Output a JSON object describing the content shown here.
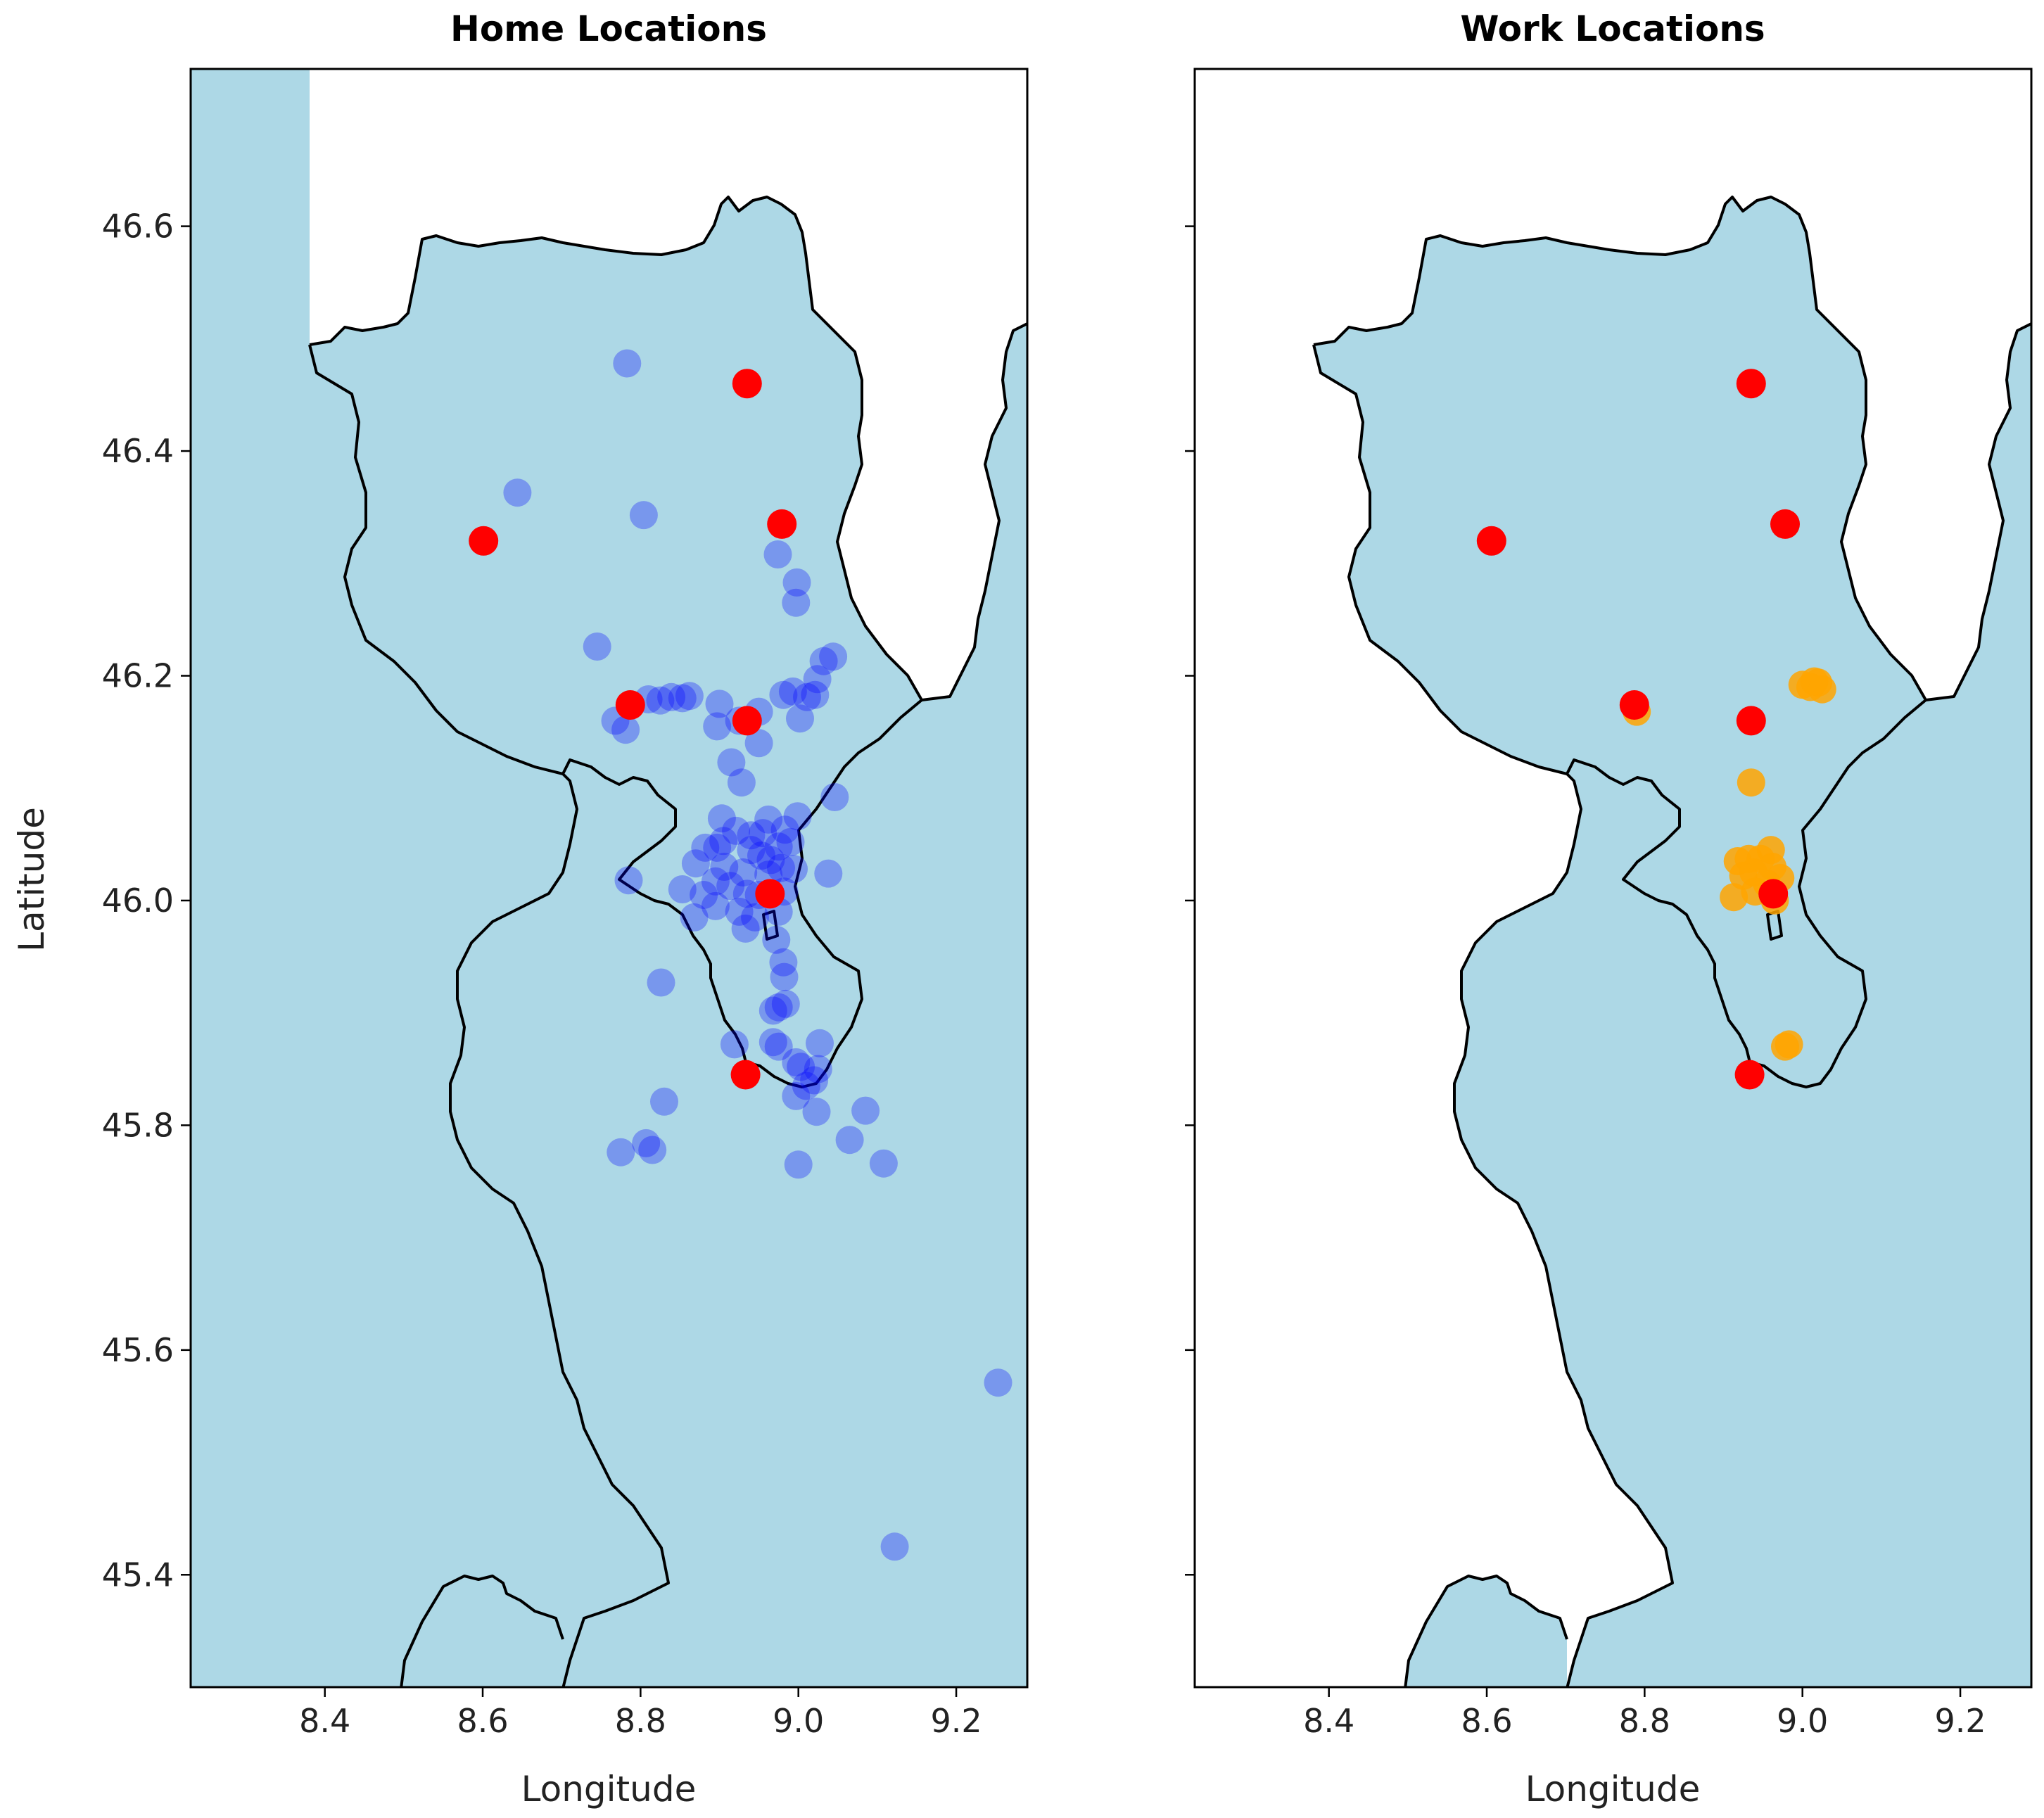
{
  "chart_data": [
    {
      "type": "scatter",
      "title": "Home Locations",
      "xlabel": "Longitude",
      "ylabel": "Latitude",
      "xlim": [
        8.23,
        9.29
      ],
      "ylim": [
        45.3,
        46.74
      ],
      "xticks": [
        "8.4",
        "8.6",
        "8.8",
        "9.0",
        "9.2"
      ],
      "xtick_values": [
        8.4,
        8.6,
        8.8,
        9.0,
        9.2
      ],
      "yticks": [
        "45.4",
        "45.6",
        "45.8",
        "46.0",
        "46.2",
        "46.4",
        "46.6"
      ],
      "ytick_values": [
        45.4,
        45.6,
        45.8,
        46.0,
        46.2,
        46.4,
        46.6
      ],
      "show_yticklabels": true,
      "map_fill_color": "#add8e6",
      "series": [
        {
          "color": "#0000ff",
          "alpha": 0.3,
          "points": [
            [
              8.783,
              46.478
            ],
            [
              8.644,
              46.363
            ],
            [
              8.804,
              46.343
            ],
            [
              8.974,
              46.308
            ],
            [
              8.998,
              46.283
            ],
            [
              8.997,
              46.265
            ],
            [
              8.745,
              46.226
            ],
            [
              9.032,
              46.213
            ],
            [
              9.044,
              46.217
            ],
            [
              9.024,
              46.197
            ],
            [
              8.981,
              46.183
            ],
            [
              8.993,
              46.186
            ],
            [
              9.011,
              46.181
            ],
            [
              9.021,
              46.183
            ],
            [
              9.002,
              46.162
            ],
            [
              8.825,
              46.178
            ],
            [
              8.839,
              46.181
            ],
            [
              8.853,
              46.18
            ],
            [
              8.862,
              46.182
            ],
            [
              8.81,
              46.179
            ],
            [
              8.768,
              46.16
            ],
            [
              8.781,
              46.152
            ],
            [
              8.9,
              46.175
            ],
            [
              8.897,
              46.155
            ],
            [
              8.925,
              46.16
            ],
            [
              8.95,
              46.168
            ],
            [
              8.95,
              46.14
            ],
            [
              8.915,
              46.123
            ],
            [
              8.928,
              46.105
            ],
            [
              9.046,
              46.092
            ],
            [
              8.903,
              46.073
            ],
            [
              8.962,
              46.072
            ],
            [
              8.999,
              46.075
            ],
            [
              8.983,
              46.063
            ],
            [
              8.955,
              46.06
            ],
            [
              8.94,
              46.058
            ],
            [
              8.921,
              46.062
            ],
            [
              8.905,
              46.053
            ],
            [
              8.882,
              46.047
            ],
            [
              8.897,
              46.047
            ],
            [
              8.94,
              46.045
            ],
            [
              8.953,
              46.04
            ],
            [
              8.965,
              46.036
            ],
            [
              8.975,
              46.048
            ],
            [
              8.99,
              46.052
            ],
            [
              8.87,
              46.033
            ],
            [
              8.906,
              46.03
            ],
            [
              8.93,
              46.025
            ],
            [
              8.962,
              46.023
            ],
            [
              8.978,
              46.029
            ],
            [
              8.994,
              46.028
            ],
            [
              9.038,
              46.024
            ],
            [
              8.785,
              46.018
            ],
            [
              8.895,
              46.017
            ],
            [
              8.914,
              46.013
            ],
            [
              8.935,
              46.006
            ],
            [
              8.95,
              46.005
            ],
            [
              8.982,
              46.008
            ],
            [
              8.853,
              46.01
            ],
            [
              8.88,
              46.005
            ],
            [
              8.895,
              45.995
            ],
            [
              8.925,
              45.99
            ],
            [
              8.945,
              45.985
            ],
            [
              8.975,
              45.99
            ],
            [
              8.868,
              45.985
            ],
            [
              8.933,
              45.975
            ],
            [
              8.972,
              45.965
            ],
            [
              8.981,
              45.945
            ],
            [
              8.982,
              45.932
            ],
            [
              8.826,
              45.927
            ],
            [
              8.984,
              45.908
            ],
            [
              8.975,
              45.905
            ],
            [
              8.968,
              45.902
            ],
            [
              8.919,
              45.872
            ],
            [
              8.968,
              45.874
            ],
            [
              8.975,
              45.87
            ],
            [
              9.027,
              45.873
            ],
            [
              8.997,
              45.856
            ],
            [
              9.003,
              45.852
            ],
            [
              9.025,
              45.85
            ],
            [
              9.02,
              45.84
            ],
            [
              9.01,
              45.835
            ],
            [
              8.83,
              45.821
            ],
            [
              8.997,
              45.826
            ],
            [
              9.023,
              45.812
            ],
            [
              9.085,
              45.813
            ],
            [
              8.807,
              45.784
            ],
            [
              8.815,
              45.778
            ],
            [
              8.775,
              45.776
            ],
            [
              9.065,
              45.787
            ],
            [
              9.0,
              45.765
            ],
            [
              9.108,
              45.766
            ],
            [
              9.253,
              45.571
            ],
            [
              9.122,
              45.425
            ]
          ]
        },
        {
          "color": "#ff0000",
          "alpha": 1.0,
          "points": [
            [
              8.935,
              46.46
            ],
            [
              8.601,
              46.32
            ],
            [
              8.979,
              46.335
            ],
            [
              8.787,
              46.174
            ],
            [
              8.935,
              46.16
            ],
            [
              8.964,
              46.006
            ],
            [
              8.933,
              45.845
            ]
          ]
        }
      ]
    },
    {
      "type": "scatter",
      "title": "Work Locations",
      "xlabel": "Longitude",
      "ylabel": "",
      "xlim": [
        8.23,
        9.29
      ],
      "ylim": [
        45.3,
        46.74
      ],
      "xticks": [
        "8.4",
        "8.6",
        "8.8",
        "9.0",
        "9.2"
      ],
      "xtick_values": [
        8.4,
        8.6,
        8.8,
        9.0,
        9.2
      ],
      "yticks": [],
      "ytick_values": [
        45.4,
        45.6,
        45.8,
        46.0,
        46.2,
        46.4,
        46.6
      ],
      "show_yticklabels": false,
      "map_fill_color": "#add8e6",
      "series": [
        {
          "color": "#ffa500",
          "alpha": 0.85,
          "points": [
            [
              8.79,
              46.168
            ],
            [
              9.02,
              46.194
            ],
            [
              9.0,
              46.192
            ],
            [
              9.01,
              46.19
            ],
            [
              9.025,
              46.188
            ],
            [
              9.015,
              46.195
            ],
            [
              8.935,
              46.105
            ],
            [
              8.96,
              46.045
            ],
            [
              8.918,
              46.035
            ],
            [
              8.932,
              46.037
            ],
            [
              8.947,
              46.037
            ],
            [
              8.962,
              46.03
            ],
            [
              8.972,
              46.02
            ],
            [
              8.925,
              46.022
            ],
            [
              8.938,
              46.025
            ],
            [
              8.955,
              46.015
            ],
            [
              8.913,
              46.003
            ],
            [
              8.94,
              46.008
            ],
            [
              8.965,
              46.0
            ],
            [
              8.983,
              45.872
            ],
            [
              8.978,
              45.87
            ]
          ]
        },
        {
          "color": "#ff0000",
          "alpha": 1.0,
          "points": [
            [
              8.935,
              46.46
            ],
            [
              8.606,
              46.32
            ],
            [
              8.978,
              46.335
            ],
            [
              8.787,
              46.174
            ],
            [
              8.935,
              46.16
            ],
            [
              8.963,
              46.006
            ],
            [
              8.933,
              45.845
            ]
          ]
        }
      ]
    }
  ]
}
